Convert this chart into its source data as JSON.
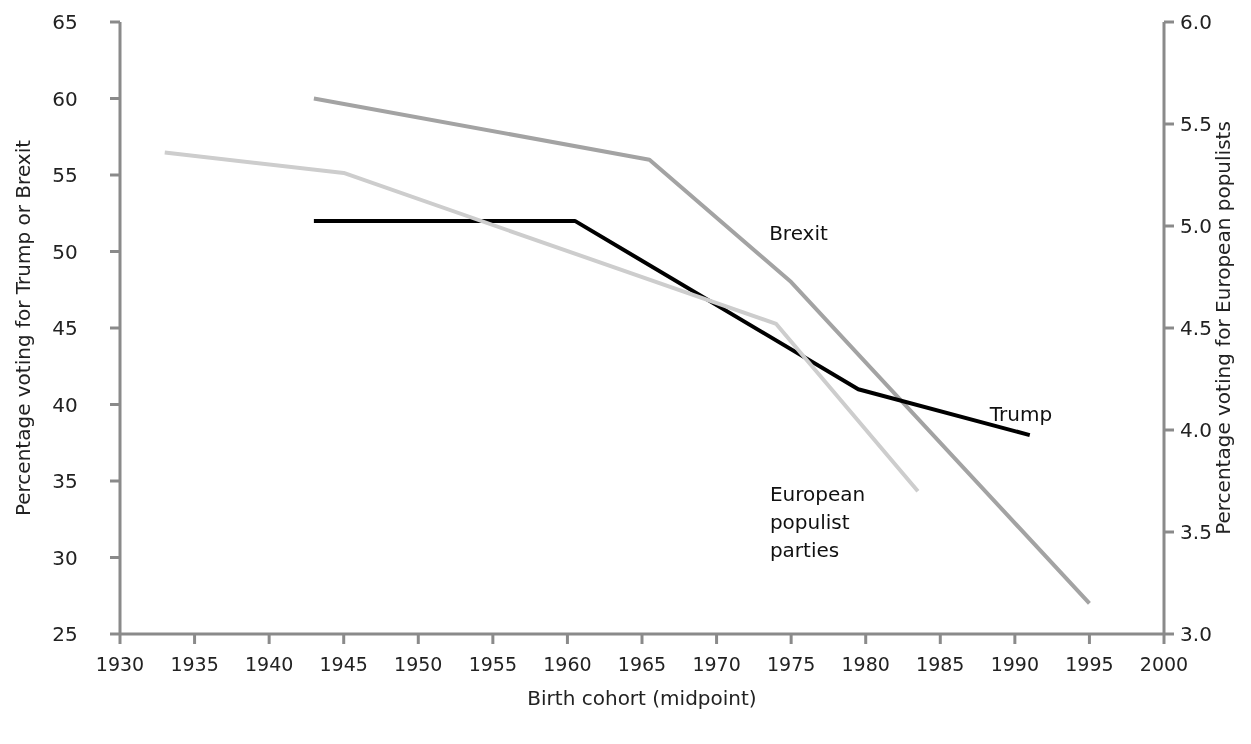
{
  "chart_data": {
    "type": "line",
    "xlabel": "Birth cohort (midpoint)",
    "ylabel": "Percentage voting for Trump or Brexit",
    "y2label": "Percentage voting for European populists",
    "xlim": [
      1930,
      2000
    ],
    "xticks": [
      1930,
      1935,
      1940,
      1945,
      1950,
      1955,
      1960,
      1965,
      1970,
      1975,
      1980,
      1985,
      1990,
      1995,
      2000
    ],
    "ylim": [
      25,
      65
    ],
    "yticks": [
      25,
      30,
      35,
      40,
      45,
      50,
      55,
      60,
      65
    ],
    "y2lim": [
      3,
      6
    ],
    "y2ticks": [
      {
        "value": 3,
        "label": "3.0"
      },
      {
        "value": 3.5,
        "label": "3.5"
      },
      {
        "value": 4,
        "label": "4.0"
      },
      {
        "value": 4.5,
        "label": "4.5"
      },
      {
        "value": 5,
        "label": "5.0"
      },
      {
        "value": 5.5,
        "label": "5.5"
      },
      {
        "value": 6,
        "label": "6.0"
      }
    ],
    "grid": false,
    "series": [
      {
        "name": "Brexit",
        "color": "#a3a3a3",
        "x": [
          1943,
          1965.5,
          1975,
          1995
        ],
        "values": [
          60,
          56,
          48,
          27
        ]
      },
      {
        "name": "Trump",
        "color": "#000000",
        "x": [
          1943,
          1960.5,
          1979.5,
          1991
        ],
        "values": [
          52,
          52,
          41,
          38
        ]
      },
      {
        "name": "European populist parties",
        "color": "#cdcdcd",
        "axis": "y2",
        "x": [
          1933,
          1945,
          1974,
          1983.5
        ],
        "values": [
          5.36,
          5.26,
          4.52,
          3.7
        ]
      }
    ]
  }
}
